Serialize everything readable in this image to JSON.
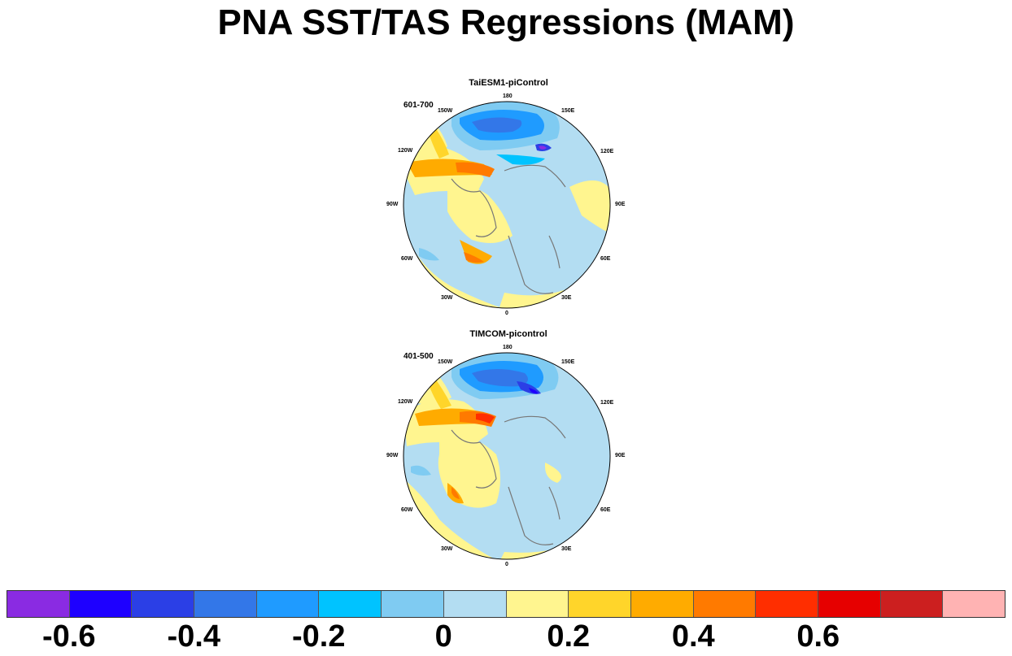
{
  "title": "PNA SST/TAS Regressions (MAM)",
  "panels": [
    {
      "title": "TaiESM1-piControl",
      "period": "601-700",
      "lon_labels": {
        "n": "180",
        "ne": "150E",
        "ene": "120E",
        "e": "90E",
        "ese": "60E",
        "se": "30E",
        "s": "0",
        "sw": "30W",
        "wsw": "60W",
        "w": "90W",
        "wnw": "120W",
        "nw": "150W"
      }
    },
    {
      "title": "TIMCOM-picontrol",
      "period": "401-500",
      "lon_labels": {
        "n": "180",
        "ne": "150E",
        "ene": "120E",
        "e": "90E",
        "ese": "60E",
        "se": "30E",
        "s": "0",
        "sw": "30W",
        "wsw": "60W",
        "w": "90W",
        "wnw": "120W",
        "nw": "150W"
      }
    }
  ],
  "colorbar": {
    "colors": [
      "#8a2be2",
      "#1e00ff",
      "#2b3fe6",
      "#3377e8",
      "#1f9bff",
      "#00c3ff",
      "#7fcbf2",
      "#b3ddf2",
      "#fff58f",
      "#ffd52a",
      "#ffab00",
      "#ff7a00",
      "#ff2e00",
      "#e60000",
      "#cc1f1f",
      "#ffb3b3"
    ],
    "labels": [
      "-0.6",
      "-0.4",
      "-0.2",
      "0",
      "0.2",
      "0.4",
      "0.6"
    ]
  }
}
